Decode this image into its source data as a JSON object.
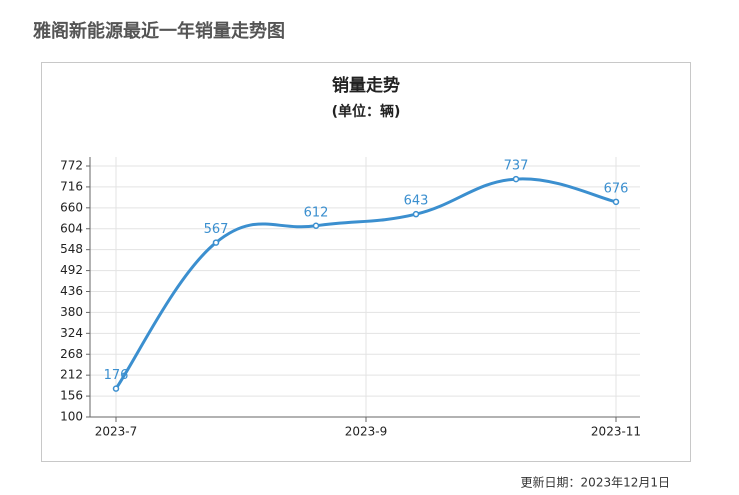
{
  "page_title": "雅阁新能源最近一年销量走势图",
  "chart_data": {
    "type": "line",
    "title": "销量走势",
    "subtitle": "(单位：辆)",
    "values": [
      176,
      567,
      612,
      643,
      737,
      676
    ],
    "color": "#3b8fcf",
    "xlim": [
      0,
      5
    ],
    "xticks": [
      {
        "value": 0,
        "label": "2023-7"
      },
      {
        "value": 2.5,
        "label": "2023-9"
      },
      {
        "value": 5,
        "label": "2023-11"
      }
    ],
    "ylim": [
      100,
      772
    ],
    "yticks": [
      100,
      156,
      212,
      268,
      324,
      380,
      436,
      492,
      548,
      604,
      660,
      716,
      772
    ],
    "grid": true
  },
  "footer": "更新日期：2023年12月1日"
}
